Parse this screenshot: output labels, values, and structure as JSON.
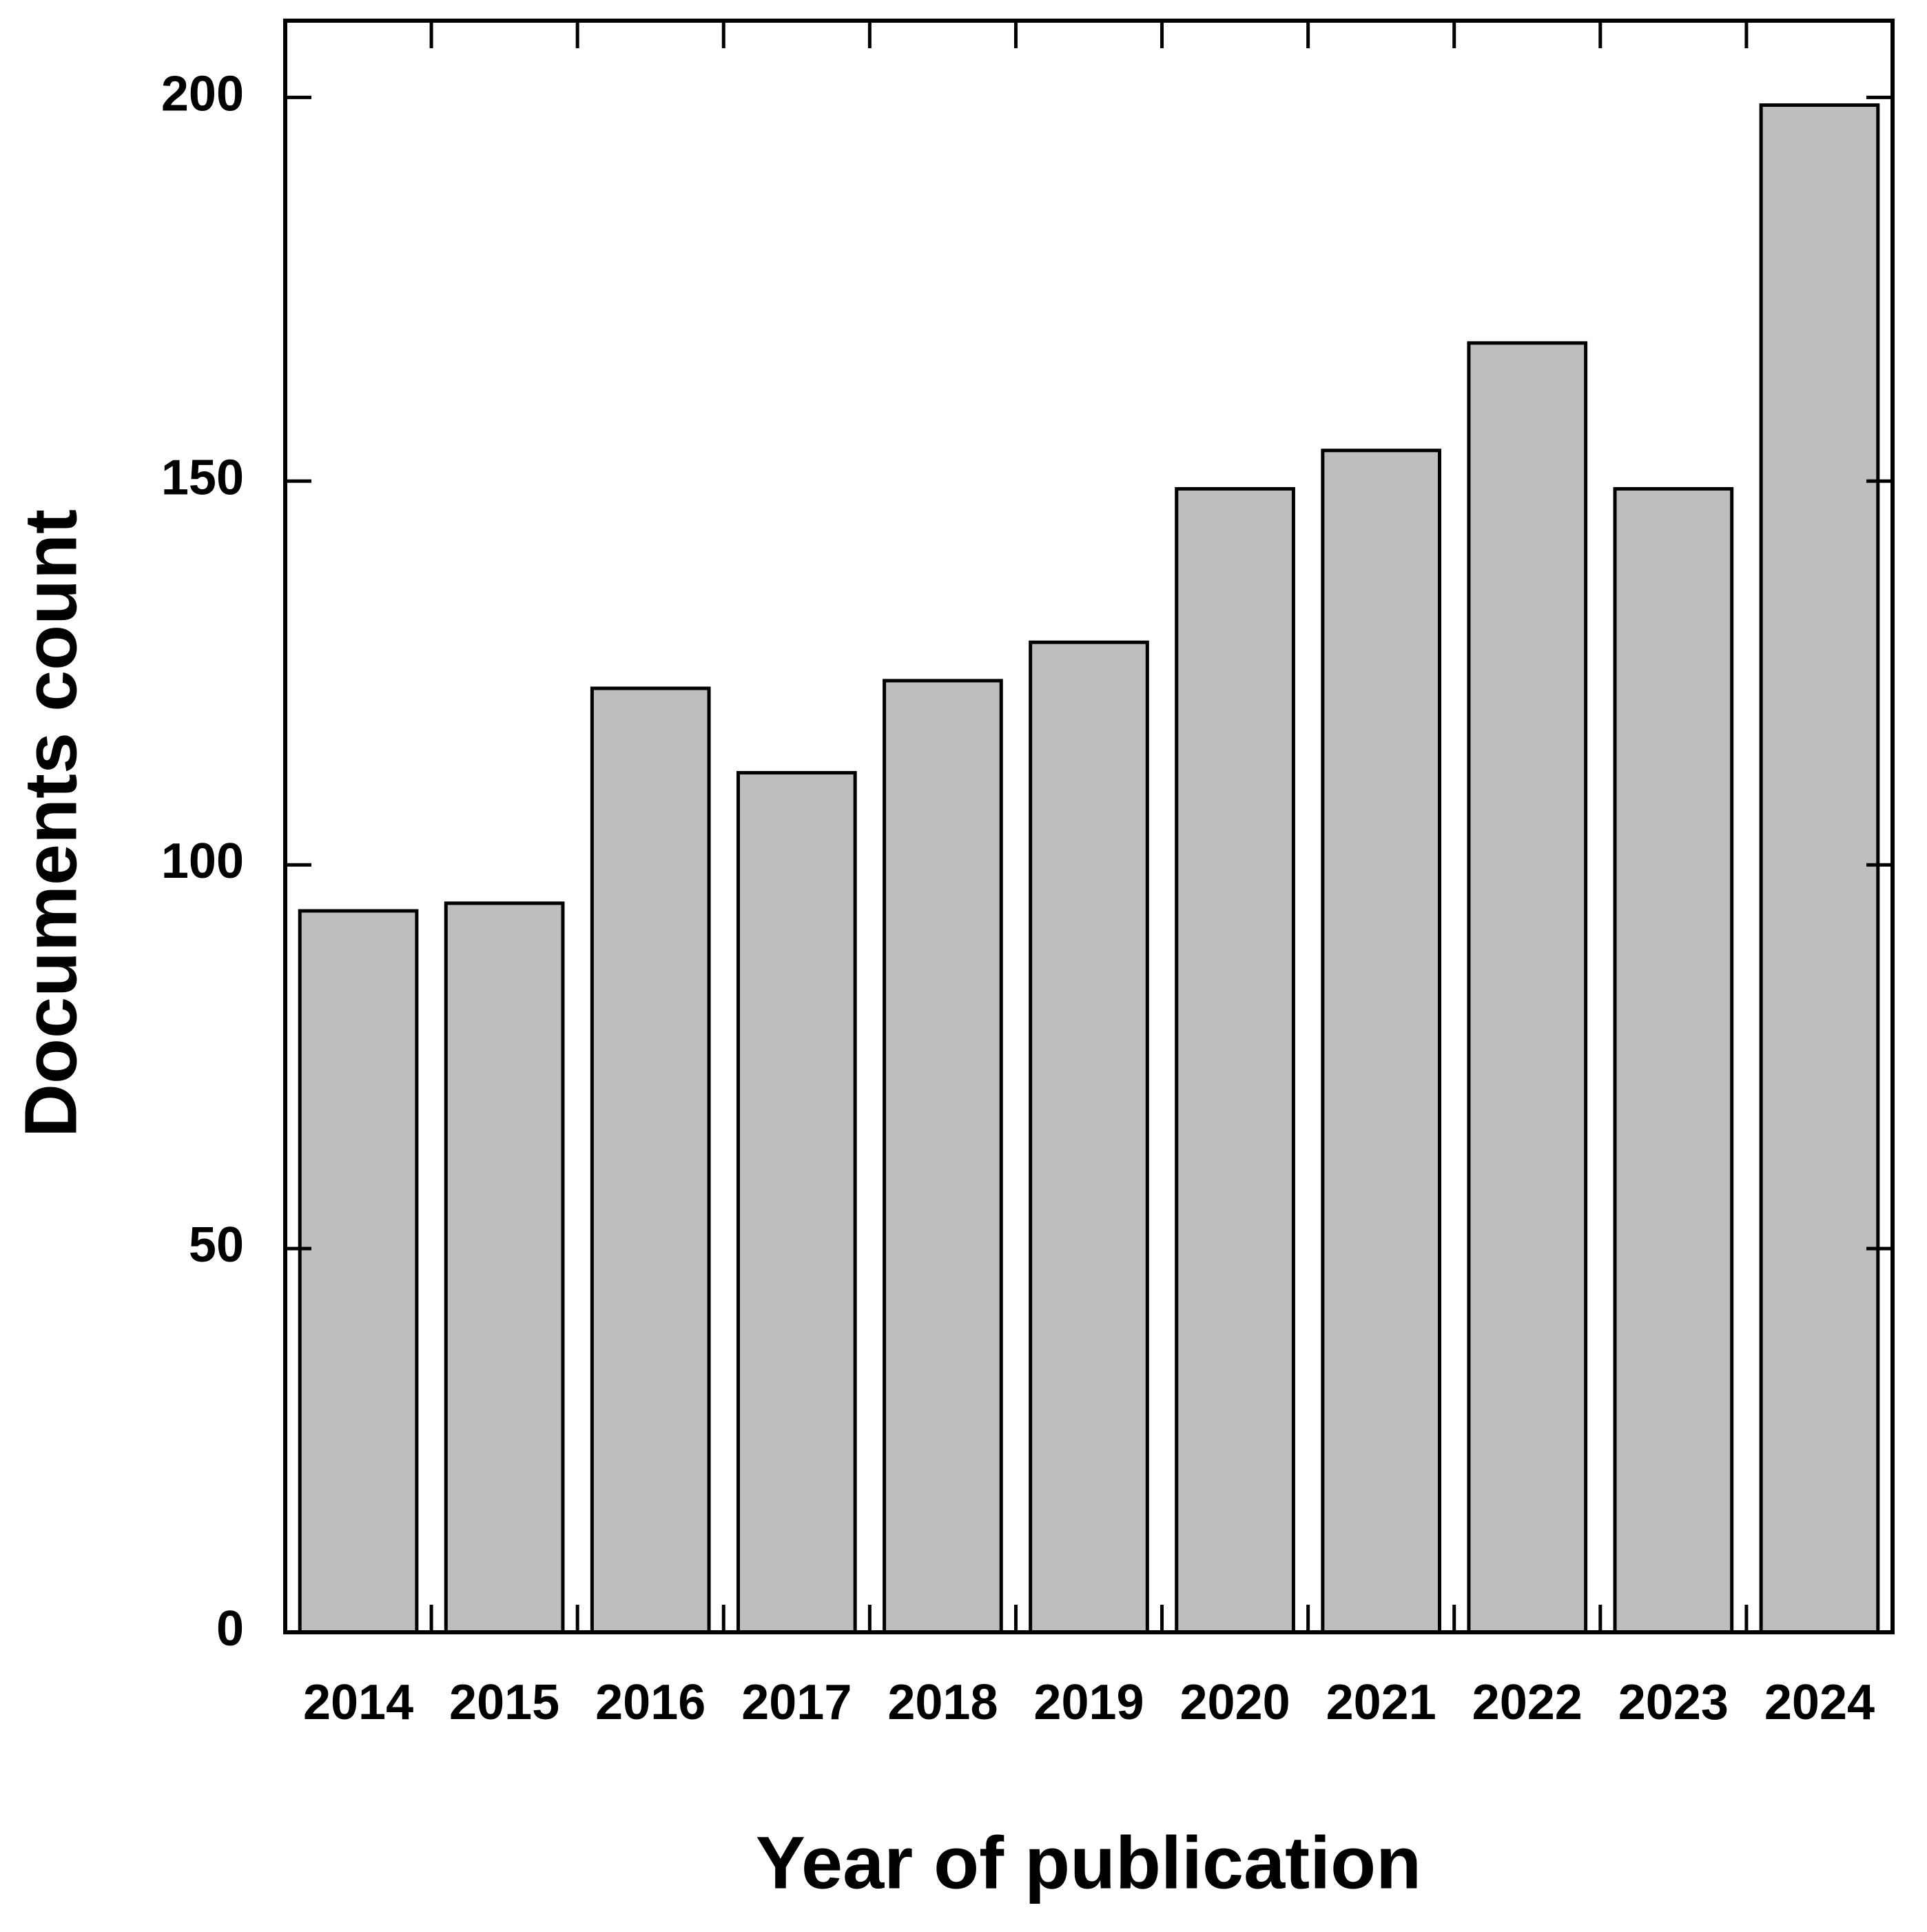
{
  "chart_data": {
    "type": "bar",
    "x_label": "Year of publication",
    "y_label": "Documents count",
    "categories": [
      "2014",
      "2015",
      "2016",
      "2017",
      "2018",
      "2019",
      "2020",
      "2021",
      "2022",
      "2023",
      "2024"
    ],
    "values": [
      94,
      95,
      123,
      112,
      124,
      129,
      149,
      154,
      168,
      149,
      199
    ],
    "color": "#bebebe",
    "ylim": [
      0,
      210
    ],
    "yticks": [
      0,
      50,
      100,
      150,
      200
    ],
    "grid": false
  }
}
